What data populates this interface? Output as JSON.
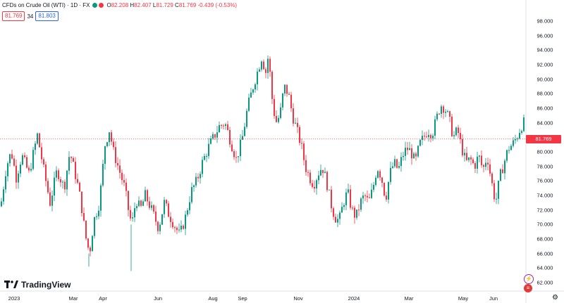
{
  "header": {
    "symbol_title": "CFDs on Crude Oil (WTI) · 1D · FX",
    "ohlc": {
      "open_label": "O",
      "open": "82.208",
      "high_label": "H",
      "high": "82.407",
      "low_label": "L",
      "low": "81.729",
      "close_label": "C",
      "close": "81.769",
      "change": "-0.439 (-0.53%)"
    },
    "sell_price": "81.769",
    "spread": "34",
    "buy_price": "81.803"
  },
  "branding": {
    "logo_text": "TradingView"
  },
  "colors": {
    "up": "#089981",
    "down": "#f23645",
    "price_line": "#f23645"
  },
  "icons": {
    "settings": "gear-icon",
    "events": "lightning-icon",
    "country": "us-flag-icon"
  },
  "chart_data": {
    "type": "candlestick",
    "y_axis": {
      "min": 62,
      "max": 98,
      "ticks": [
        "98.000",
        "96.000",
        "94.000",
        "92.000",
        "90.000",
        "88.000",
        "86.000",
        "84.000",
        "82.000",
        "80.000",
        "78.000",
        "76.000",
        "74.000",
        "72.000",
        "70.000",
        "68.000",
        "66.000",
        "64.000",
        "62.000"
      ]
    },
    "x_axis": {
      "ticks": [
        "2023",
        "Mar",
        "Apr",
        "Jun",
        "Aug",
        "Sep",
        "Nov",
        "2024",
        "Mar",
        "May",
        "Jun"
      ]
    },
    "current_price": "81.769",
    "close_path": [
      [
        0,
        72.5
      ],
      [
        8,
        78
      ],
      [
        15,
        80
      ],
      [
        22,
        76.5
      ],
      [
        30,
        79.5
      ],
      [
        40,
        77
      ],
      [
        52,
        82.3
      ],
      [
        62,
        77
      ],
      [
        70,
        73
      ],
      [
        80,
        77.5
      ],
      [
        90,
        75
      ],
      [
        98,
        80
      ],
      [
        108,
        76
      ],
      [
        114,
        73
      ],
      [
        120,
        68.5
      ],
      [
        126,
        66
      ],
      [
        132,
        70.5
      ],
      [
        140,
        73
      ],
      [
        148,
        81
      ],
      [
        154,
        83
      ],
      [
        160,
        80
      ],
      [
        168,
        77.5
      ],
      [
        176,
        75
      ],
      [
        182,
        71.5
      ],
      [
        186,
        70
      ],
      [
        192,
        73.5
      ],
      [
        198,
        72
      ],
      [
        205,
        74
      ],
      [
        212,
        72.5
      ],
      [
        218,
        71
      ],
      [
        224,
        69.5
      ],
      [
        232,
        73
      ],
      [
        238,
        71.5
      ],
      [
        246,
        70
      ],
      [
        254,
        68.5
      ],
      [
        262,
        71
      ],
      [
        270,
        74.5
      ],
      [
        278,
        76
      ],
      [
        286,
        78.5
      ],
      [
        294,
        80.5
      ],
      [
        302,
        82
      ],
      [
        310,
        83.5
      ],
      [
        318,
        84
      ],
      [
        326,
        81.5
      ],
      [
        334,
        79
      ],
      [
        342,
        81.5
      ],
      [
        350,
        86
      ],
      [
        358,
        89
      ],
      [
        364,
        91
      ],
      [
        370,
        93
      ],
      [
        376,
        91
      ],
      [
        380,
        93.5
      ],
      [
        384,
        88
      ],
      [
        390,
        84
      ],
      [
        396,
        85
      ],
      [
        402,
        89
      ],
      [
        408,
        88
      ],
      [
        414,
        85
      ],
      [
        420,
        83
      ],
      [
        426,
        81
      ],
      [
        432,
        78
      ],
      [
        438,
        76.5
      ],
      [
        444,
        75.5
      ],
      [
        450,
        77
      ],
      [
        456,
        78
      ],
      [
        462,
        76
      ],
      [
        468,
        73
      ],
      [
        474,
        71
      ],
      [
        480,
        70.5
      ],
      [
        486,
        73
      ],
      [
        492,
        74.5
      ],
      [
        498,
        72
      ],
      [
        504,
        71
      ],
      [
        510,
        73
      ],
      [
        516,
        74
      ],
      [
        522,
        73
      ],
      [
        528,
        75
      ],
      [
        534,
        78
      ],
      [
        540,
        76.5
      ],
      [
        546,
        73.5
      ],
      [
        552,
        77
      ],
      [
        558,
        78.5
      ],
      [
        564,
        77.5
      ],
      [
        570,
        79.5
      ],
      [
        576,
        80.5
      ],
      [
        582,
        80
      ],
      [
        588,
        78.5
      ],
      [
        594,
        81
      ],
      [
        600,
        82
      ],
      [
        606,
        83
      ],
      [
        612,
        82.5
      ],
      [
        618,
        84.5
      ],
      [
        624,
        86.5
      ],
      [
        630,
        86
      ],
      [
        636,
        84.5
      ],
      [
        642,
        82
      ],
      [
        648,
        83
      ],
      [
        654,
        80.5
      ],
      [
        660,
        78.5
      ],
      [
        666,
        79
      ],
      [
        672,
        78
      ],
      [
        678,
        79.5
      ],
      [
        684,
        77.5
      ],
      [
        690,
        79.5
      ],
      [
        696,
        76
      ],
      [
        702,
        73
      ],
      [
        708,
        76.5
      ],
      [
        714,
        78.5
      ],
      [
        720,
        80.5
      ],
      [
        726,
        81
      ],
      [
        732,
        82
      ],
      [
        738,
        83.5
      ],
      [
        742,
        84
      ],
      [
        746,
        81.769
      ]
    ]
  }
}
